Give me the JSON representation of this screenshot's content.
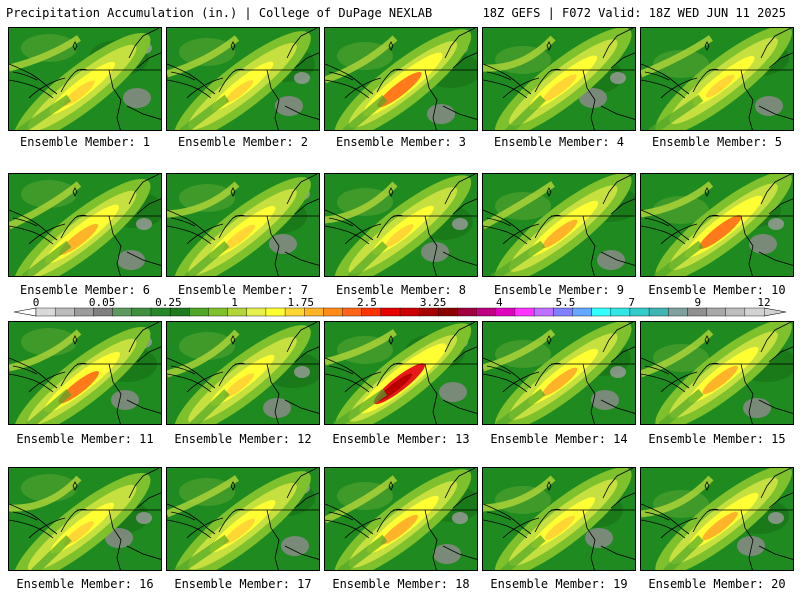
{
  "header": {
    "left": "Precipitation Accumulation (in.) | College of DuPage NEXLAB",
    "right": "18Z GEFS | F072 Valid: 18Z WED JUN 11 2025"
  },
  "colorbar": {
    "tick_labels": [
      "0",
      "0.05",
      "0.25",
      "1",
      "1.75",
      "2.5",
      "3.25",
      "4",
      "5.5",
      "7",
      "9",
      "12"
    ],
    "colors": [
      "#d9d9d9",
      "#bcbcbc",
      "#9c9c9c",
      "#7f7f7f",
      "#5e995e",
      "#3f8f3f",
      "#2a862a",
      "#1f7a1f",
      "#4fa628",
      "#7fc02d",
      "#b2d63a",
      "#e6f04d",
      "#ffff33",
      "#ffd633",
      "#ffb329",
      "#ff8c1a",
      "#ff661a",
      "#ff3300",
      "#e60000",
      "#cc0000",
      "#a60000",
      "#8c0000",
      "#a00040",
      "#c00080",
      "#e000c0",
      "#ff33ff",
      "#c070ff",
      "#8080ff",
      "#66a8ff",
      "#33ffff",
      "#33e6e6",
      "#33cccc",
      "#40b3b3",
      "#80a0a0",
      "#909090",
      "#a8a8a8",
      "#bdbdbd",
      "#d2d2d2"
    ]
  },
  "members": [
    {
      "label": "Ensemble Member: 1",
      "intensity": 0.45
    },
    {
      "label": "Ensemble Member: 2",
      "intensity": 0.35
    },
    {
      "label": "Ensemble Member: 3",
      "intensity": 0.8
    },
    {
      "label": "Ensemble Member: 4",
      "intensity": 0.5
    },
    {
      "label": "Ensemble Member: 5",
      "intensity": 0.35
    },
    {
      "label": "Ensemble Member: 6",
      "intensity": 0.65
    },
    {
      "label": "Ensemble Member: 7",
      "intensity": 0.45
    },
    {
      "label": "Ensemble Member: 8",
      "intensity": 0.35
    },
    {
      "label": "Ensemble Member: 9",
      "intensity": 0.55
    },
    {
      "label": "Ensemble Member: 10",
      "intensity": 0.75
    },
    {
      "label": "Ensemble Member: 11",
      "intensity": 0.7
    },
    {
      "label": "Ensemble Member: 12",
      "intensity": 0.4
    },
    {
      "label": "Ensemble Member: 13",
      "intensity": 1.0
    },
    {
      "label": "Ensemble Member: 14",
      "intensity": 0.55
    },
    {
      "label": "Ensemble Member: 15",
      "intensity": 0.55
    },
    {
      "label": "Ensemble Member: 16",
      "intensity": 0.4
    },
    {
      "label": "Ensemble Member: 17",
      "intensity": 0.45
    },
    {
      "label": "Ensemble Member: 18",
      "intensity": 0.6
    },
    {
      "label": "Ensemble Member: 19",
      "intensity": 0.4
    },
    {
      "label": "Ensemble Member: 20",
      "intensity": 0.55
    }
  ]
}
